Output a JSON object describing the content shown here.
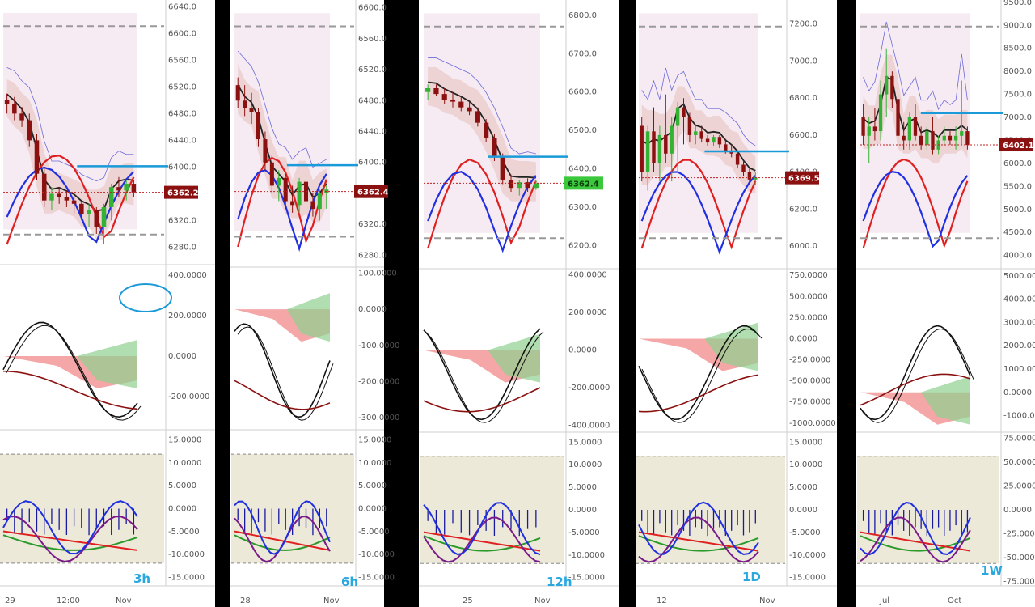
{
  "chart_data": [
    {
      "type": "candlestick",
      "timeframe": "3h",
      "x_tick_labels": [
        "29",
        "12:00",
        "Nov"
      ],
      "price_axis": [
        "6640.0",
        "6600.0",
        "6560.0",
        "6520.0",
        "6480.0",
        "6440.0",
        "6400.0",
        "6360.0",
        "6320.0",
        "6280.0"
      ],
      "price_ylim": [
        6260,
        6650
      ],
      "last_price": "6362.2",
      "osc1_axis": [
        "400.0000",
        "200.0000",
        "0.0000",
        "-200.0000"
      ],
      "osc1_ylim": [
        -340,
        440
      ],
      "osc2_axis": [
        "15.0000",
        "10.0000",
        "5.0000",
        "0.0000",
        "-5.0000",
        "-10.0000",
        "-15.0000"
      ],
      "osc2_ylim": [
        -16.5,
        16.5
      ],
      "candles": [
        {
          "o": 6500,
          "h": 6510,
          "l": 6480,
          "c": 6495
        },
        {
          "o": 6495,
          "h": 6505,
          "l": 6470,
          "c": 6480
        },
        {
          "o": 6480,
          "h": 6490,
          "l": 6460,
          "c": 6470
        },
        {
          "o": 6470,
          "h": 6480,
          "l": 6430,
          "c": 6440
        },
        {
          "o": 6440,
          "h": 6450,
          "l": 6380,
          "c": 6390
        },
        {
          "o": 6390,
          "h": 6400,
          "l": 6340,
          "c": 6350
        },
        {
          "o": 6350,
          "h": 6370,
          "l": 6335,
          "c": 6360
        },
        {
          "o": 6360,
          "h": 6370,
          "l": 6345,
          "c": 6355
        },
        {
          "o": 6355,
          "h": 6365,
          "l": 6340,
          "c": 6350
        },
        {
          "o": 6350,
          "h": 6360,
          "l": 6330,
          "c": 6345
        },
        {
          "o": 6345,
          "h": 6350,
          "l": 6320,
          "c": 6330
        },
        {
          "o": 6330,
          "h": 6345,
          "l": 6310,
          "c": 6335
        },
        {
          "o": 6335,
          "h": 6340,
          "l": 6300,
          "c": 6310
        },
        {
          "o": 6310,
          "h": 6345,
          "l": 6285,
          "c": 6340
        },
        {
          "o": 6340,
          "h": 6375,
          "l": 6320,
          "c": 6370
        },
        {
          "o": 6370,
          "h": 6385,
          "l": 6355,
          "c": 6365
        },
        {
          "o": 6365,
          "h": 6380,
          "l": 6350,
          "c": 6375
        },
        {
          "o": 6375,
          "h": 6380,
          "l": 6355,
          "c": 6362
        }
      ]
    },
    {
      "type": "candlestick",
      "timeframe": "6h",
      "x_tick_labels": [
        "28",
        "Nov"
      ],
      "price_axis": [
        "6600.0",
        "6560.0",
        "6520.0",
        "6480.0",
        "6440.0",
        "6400.0",
        "6360.0",
        "6320.0",
        "6280.0"
      ],
      "price_ylim": [
        6270,
        6610
      ],
      "last_price": "6362.4",
      "osc1_axis": [
        "100.0000",
        "0.0000",
        "-100.0000",
        "-200.0000",
        "-300.0000"
      ],
      "osc1_ylim": [
        -320,
        110
      ],
      "osc2_axis": [
        "15.0000",
        "10.0000",
        "5.0000",
        "0.0000",
        "-5.0000",
        "-10.0000",
        "-15.0000"
      ],
      "osc2_ylim": [
        -16.5,
        16.5
      ],
      "candles": [
        {
          "o": 6500,
          "h": 6510,
          "l": 6470,
          "c": 6480
        },
        {
          "o": 6480,
          "h": 6500,
          "l": 6460,
          "c": 6470
        },
        {
          "o": 6470,
          "h": 6490,
          "l": 6450,
          "c": 6465
        },
        {
          "o": 6465,
          "h": 6470,
          "l": 6420,
          "c": 6430
        },
        {
          "o": 6430,
          "h": 6440,
          "l": 6390,
          "c": 6400
        },
        {
          "o": 6400,
          "h": 6410,
          "l": 6360,
          "c": 6370
        },
        {
          "o": 6370,
          "h": 6390,
          "l": 6350,
          "c": 6380
        },
        {
          "o": 6380,
          "h": 6385,
          "l": 6340,
          "c": 6350
        },
        {
          "o": 6350,
          "h": 6370,
          "l": 6335,
          "c": 6345
        },
        {
          "o": 6345,
          "h": 6380,
          "l": 6335,
          "c": 6375
        },
        {
          "o": 6375,
          "h": 6385,
          "l": 6345,
          "c": 6350
        },
        {
          "o": 6350,
          "h": 6360,
          "l": 6330,
          "c": 6340
        },
        {
          "o": 6340,
          "h": 6365,
          "l": 6325,
          "c": 6360
        },
        {
          "o": 6360,
          "h": 6370,
          "l": 6340,
          "c": 6365
        }
      ]
    },
    {
      "type": "candlestick",
      "timeframe": "12h",
      "x_tick_labels": [
        "25",
        "Nov"
      ],
      "price_axis": [
        "6800.0",
        "6700.0",
        "6600.0",
        "6500.0",
        "6400.0",
        "6300.0",
        "6200.0"
      ],
      "price_ylim": [
        6150,
        6840
      ],
      "last_price": "6362.4",
      "osc1_axis": [
        "400.0000",
        "200.0000",
        "0.0000",
        "-200.0000",
        "-400.0000"
      ],
      "osc1_ylim": [
        -410,
        420
      ],
      "osc2_axis": [
        "15.0000",
        "10.0000",
        "5.0000",
        "0.0000",
        "-5.0000",
        "-10.0000",
        "-15.0000"
      ],
      "osc2_ylim": [
        -16.5,
        16.5
      ],
      "candles": [
        {
          "o": 6600,
          "h": 6620,
          "l": 6580,
          "c": 6610
        },
        {
          "o": 6610,
          "h": 6620,
          "l": 6590,
          "c": 6595
        },
        {
          "o": 6595,
          "h": 6610,
          "l": 6570,
          "c": 6580
        },
        {
          "o": 6580,
          "h": 6600,
          "l": 6560,
          "c": 6575
        },
        {
          "o": 6575,
          "h": 6590,
          "l": 6550,
          "c": 6560
        },
        {
          "o": 6560,
          "h": 6580,
          "l": 6540,
          "c": 6550
        },
        {
          "o": 6550,
          "h": 6560,
          "l": 6510,
          "c": 6520
        },
        {
          "o": 6520,
          "h": 6530,
          "l": 6470,
          "c": 6480
        },
        {
          "o": 6480,
          "h": 6490,
          "l": 6420,
          "c": 6430
        },
        {
          "o": 6430,
          "h": 6440,
          "l": 6360,
          "c": 6370
        },
        {
          "o": 6370,
          "h": 6385,
          "l": 6340,
          "c": 6350
        },
        {
          "o": 6350,
          "h": 6370,
          "l": 6330,
          "c": 6365
        },
        {
          "o": 6365,
          "h": 6375,
          "l": 6340,
          "c": 6350
        },
        {
          "o": 6350,
          "h": 6370,
          "l": 6345,
          "c": 6362
        }
      ]
    },
    {
      "type": "candlestick",
      "timeframe": "1D",
      "x_tick_labels": [
        "12",
        "Nov"
      ],
      "price_axis": [
        "7200.0",
        "7000.0",
        "6800.0",
        "6600.0",
        "6400.0",
        "6200.0",
        "6000.0"
      ],
      "price_ylim": [
        5900,
        7330
      ],
      "last_price": "6369.5",
      "osc1_axis": [
        "750.0000",
        "500.0000",
        "250.0000",
        "0.0000",
        "-250.0000",
        "-500.0000",
        "-750.0000",
        "-1000.0000"
      ],
      "osc1_ylim": [
        -1050,
        800
      ],
      "osc2_axis": [
        "15.0000",
        "10.0000",
        "5.0000",
        "0.0000",
        "-5.0000",
        "-10.0000",
        "-15.0000"
      ],
      "osc2_ylim": [
        -16.5,
        16.5
      ],
      "candles": [
        {
          "o": 6650,
          "h": 6700,
          "l": 6350,
          "c": 6400
        },
        {
          "o": 6400,
          "h": 6650,
          "l": 6300,
          "c": 6620
        },
        {
          "o": 6620,
          "h": 6750,
          "l": 6400,
          "c": 6450
        },
        {
          "o": 6450,
          "h": 6650,
          "l": 6350,
          "c": 6600
        },
        {
          "o": 6600,
          "h": 6820,
          "l": 6450,
          "c": 6500
        },
        {
          "o": 6500,
          "h": 6700,
          "l": 6350,
          "c": 6650
        },
        {
          "o": 6650,
          "h": 6780,
          "l": 6400,
          "c": 6750
        },
        {
          "o": 6750,
          "h": 6800,
          "l": 6550,
          "c": 6700
        },
        {
          "o": 6700,
          "h": 6720,
          "l": 6560,
          "c": 6600
        },
        {
          "o": 6600,
          "h": 6650,
          "l": 6550,
          "c": 6620
        },
        {
          "o": 6620,
          "h": 6650,
          "l": 6560,
          "c": 6580
        },
        {
          "o": 6580,
          "h": 6600,
          "l": 6540,
          "c": 6560
        },
        {
          "o": 6560,
          "h": 6600,
          "l": 6540,
          "c": 6590
        },
        {
          "o": 6590,
          "h": 6600,
          "l": 6530,
          "c": 6550
        },
        {
          "o": 6550,
          "h": 6580,
          "l": 6500,
          "c": 6510
        },
        {
          "o": 6510,
          "h": 6550,
          "l": 6480,
          "c": 6500
        },
        {
          "o": 6500,
          "h": 6520,
          "l": 6420,
          "c": 6440
        },
        {
          "o": 6440,
          "h": 6460,
          "l": 6380,
          "c": 6400
        },
        {
          "o": 6400,
          "h": 6420,
          "l": 6340,
          "c": 6360
        },
        {
          "o": 6360,
          "h": 6400,
          "l": 6330,
          "c": 6370
        }
      ]
    },
    {
      "type": "candlestick",
      "timeframe": "1W",
      "x_tick_labels": [
        "Jul",
        "Oct"
      ],
      "price_axis": [
        "9500.0",
        "9000.0",
        "8500.0",
        "8000.0",
        "7500.0",
        "7000.0",
        "6500.0",
        "6000.0",
        "5500.0",
        "5000.0",
        "4500.0",
        "4000.0"
      ],
      "price_ylim": [
        3800,
        9550
      ],
      "last_price": "6402.1",
      "osc1_axis": [
        "5000.0000",
        "4000.0000",
        "3000.0000",
        "2000.0000",
        "1000.0000",
        "0.0000",
        "-1000.0000"
      ],
      "osc1_ylim": [
        -1500,
        5200
      ],
      "osc2_axis": [
        "75.0000",
        "50.0000",
        "25.0000",
        "0.0000",
        "-25.0000",
        "-50.0000",
        "-75.0000"
      ],
      "osc2_ylim": [
        -78,
        78
      ],
      "candles": [
        {
          "o": 7000,
          "h": 7300,
          "l": 6400,
          "c": 6600
        },
        {
          "o": 6600,
          "h": 7000,
          "l": 6000,
          "c": 6800
        },
        {
          "o": 6800,
          "h": 7200,
          "l": 6500,
          "c": 6700
        },
        {
          "o": 6700,
          "h": 7800,
          "l": 6500,
          "c": 7500
        },
        {
          "o": 7500,
          "h": 8500,
          "l": 7000,
          "c": 7900
        },
        {
          "o": 7900,
          "h": 8000,
          "l": 7200,
          "c": 7400
        },
        {
          "o": 7400,
          "h": 7500,
          "l": 6400,
          "c": 6600
        },
        {
          "o": 6600,
          "h": 6900,
          "l": 6300,
          "c": 6500
        },
        {
          "o": 6500,
          "h": 7100,
          "l": 6300,
          "c": 7000
        },
        {
          "o": 7000,
          "h": 7300,
          "l": 6500,
          "c": 6600
        },
        {
          "o": 6600,
          "h": 6800,
          "l": 6300,
          "c": 6400
        },
        {
          "o": 6400,
          "h": 6800,
          "l": 6300,
          "c": 6700
        },
        {
          "o": 6700,
          "h": 7000,
          "l": 6200,
          "c": 6300
        },
        {
          "o": 6300,
          "h": 6600,
          "l": 6200,
          "c": 6500
        },
        {
          "o": 6500,
          "h": 6800,
          "l": 6400,
          "c": 6600
        },
        {
          "o": 6600,
          "h": 6700,
          "l": 6400,
          "c": 6500
        },
        {
          "o": 6500,
          "h": 6800,
          "l": 6300,
          "c": 6600
        },
        {
          "o": 6600,
          "h": 7800,
          "l": 6400,
          "c": 6700
        },
        {
          "o": 6700,
          "h": 6800,
          "l": 6300,
          "c": 6400
        }
      ]
    }
  ]
}
